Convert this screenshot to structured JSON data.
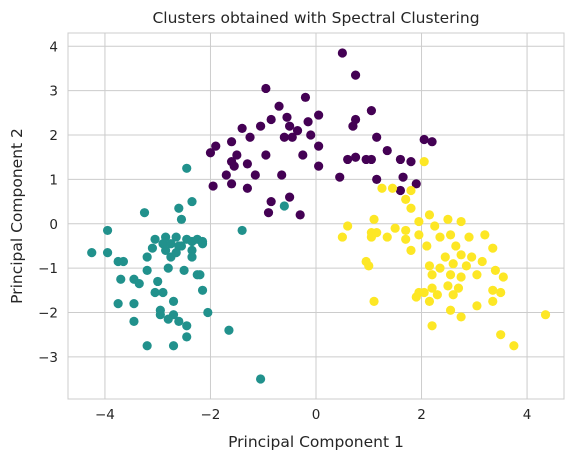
{
  "chart_data": {
    "type": "scatter",
    "title": "Clusters obtained with Spectral Clustering",
    "xlabel": "Principal Component 1",
    "ylabel": "Principal Component 2",
    "xlim": [
      -4.7,
      4.7
    ],
    "ylim": [
      -3.95,
      4.3
    ],
    "xticks": [
      -4,
      -2,
      0,
      2,
      4
    ],
    "yticks": [
      -3,
      -2,
      -1,
      0,
      1,
      2,
      3,
      4
    ],
    "xtick_labels": [
      "−4",
      "−2",
      "0",
      "2",
      "4"
    ],
    "ytick_labels": [
      "−3",
      "−2",
      "−1",
      "0",
      "1",
      "2",
      "3",
      "4"
    ],
    "grid": true,
    "legend": "none",
    "colormap": "viridis",
    "series": [
      {
        "color": "#440154",
        "points": [
          [
            0.5,
            3.85
          ],
          [
            0.75,
            3.35
          ],
          [
            -0.95,
            3.05
          ],
          [
            -0.2,
            2.85
          ],
          [
            -0.7,
            2.65
          ],
          [
            0.05,
            2.45
          ],
          [
            0.75,
            2.35
          ],
          [
            -0.55,
            2.4
          ],
          [
            -0.85,
            2.35
          ],
          [
            -0.15,
            2.3
          ],
          [
            1.05,
            2.55
          ],
          [
            -0.5,
            2.2
          ],
          [
            -1.05,
            2.2
          ],
          [
            -1.4,
            2.15
          ],
          [
            0.7,
            2.2
          ],
          [
            -0.35,
            2.1
          ],
          [
            -0.1,
            2.0
          ],
          [
            -0.6,
            1.95
          ],
          [
            -0.45,
            1.95
          ],
          [
            -1.25,
            1.95
          ],
          [
            0.05,
            1.75
          ],
          [
            -1.6,
            1.85
          ],
          [
            -1.9,
            1.75
          ],
          [
            -2.0,
            1.6
          ],
          [
            1.15,
            1.95
          ],
          [
            1.35,
            1.65
          ],
          [
            2.05,
            1.9
          ],
          [
            2.2,
            1.85
          ],
          [
            -0.95,
            1.55
          ],
          [
            -1.5,
            1.55
          ],
          [
            -0.25,
            1.55
          ],
          [
            0.75,
            1.5
          ],
          [
            0.95,
            1.45
          ],
          [
            1.05,
            1.45
          ],
          [
            1.6,
            1.45
          ],
          [
            1.8,
            1.4
          ],
          [
            0.6,
            1.45
          ],
          [
            -1.6,
            1.4
          ],
          [
            -1.55,
            1.3
          ],
          [
            -1.3,
            1.35
          ],
          [
            0.05,
            1.3
          ],
          [
            -1.7,
            1.1
          ],
          [
            -1.15,
            1.1
          ],
          [
            -0.65,
            1.1
          ],
          [
            0.45,
            1.05
          ],
          [
            1.15,
            1.0
          ],
          [
            1.65,
            1.05
          ],
          [
            -1.95,
            0.85
          ],
          [
            -1.6,
            0.9
          ],
          [
            -1.3,
            0.8
          ],
          [
            -0.5,
            0.6
          ],
          [
            -0.85,
            0.5
          ],
          [
            1.6,
            0.75
          ],
          [
            1.9,
            0.9
          ],
          [
            -0.9,
            0.25
          ],
          [
            -0.3,
            0.2
          ]
        ]
      },
      {
        "color": "#21918c",
        "points": [
          [
            -2.45,
            1.25
          ],
          [
            -2.6,
            0.35
          ],
          [
            -2.35,
            0.5
          ],
          [
            -2.55,
            0.1
          ],
          [
            -3.25,
            0.25
          ],
          [
            -1.4,
            -0.15
          ],
          [
            -3.95,
            -0.15
          ],
          [
            -4.25,
            -0.65
          ],
          [
            -3.95,
            -0.65
          ],
          [
            -3.65,
            -0.85
          ],
          [
            -3.75,
            -0.85
          ],
          [
            -3.05,
            -0.35
          ],
          [
            -2.9,
            -0.45
          ],
          [
            -2.85,
            -0.3
          ],
          [
            -2.75,
            -0.45
          ],
          [
            -2.65,
            -0.3
          ],
          [
            -2.55,
            -0.5
          ],
          [
            -2.45,
            -0.35
          ],
          [
            -2.35,
            -0.4
          ],
          [
            -2.25,
            -0.35
          ],
          [
            -2.15,
            -0.45
          ],
          [
            -3.1,
            -0.55
          ],
          [
            -2.85,
            -0.6
          ],
          [
            -2.6,
            -0.5
          ],
          [
            -2.35,
            -0.6
          ],
          [
            -2.15,
            -0.4
          ],
          [
            -3.2,
            -0.75
          ],
          [
            -2.75,
            -0.75
          ],
          [
            -2.65,
            -0.65
          ],
          [
            -2.35,
            -0.75
          ],
          [
            -2.8,
            -1.0
          ],
          [
            -3.2,
            -1.05
          ],
          [
            -2.5,
            -1.05
          ],
          [
            -3.7,
            -1.25
          ],
          [
            -3.45,
            -1.25
          ],
          [
            -2.2,
            -1.15
          ],
          [
            -2.25,
            -1.15
          ],
          [
            -3.35,
            -1.35
          ],
          [
            -3.0,
            -1.3
          ],
          [
            -3.05,
            -1.55
          ],
          [
            -2.9,
            -1.55
          ],
          [
            -2.15,
            -1.5
          ],
          [
            -3.75,
            -1.8
          ],
          [
            -3.45,
            -1.8
          ],
          [
            -2.7,
            -1.75
          ],
          [
            -2.95,
            -1.95
          ],
          [
            -2.7,
            -2.05
          ],
          [
            -2.05,
            -2.0
          ],
          [
            -2.95,
            -2.05
          ],
          [
            -2.8,
            -2.15
          ],
          [
            -2.6,
            -2.2
          ],
          [
            -3.45,
            -2.2
          ],
          [
            -2.45,
            -2.3
          ],
          [
            -1.65,
            -2.4
          ],
          [
            -2.45,
            -2.55
          ],
          [
            -3.2,
            -2.75
          ],
          [
            -2.7,
            -2.75
          ],
          [
            -1.05,
            -3.5
          ],
          [
            -0.6,
            0.4
          ]
        ]
      },
      {
        "color": "#fde725",
        "points": [
          [
            2.05,
            1.4
          ],
          [
            1.25,
            0.8
          ],
          [
            1.45,
            0.8
          ],
          [
            1.8,
            0.75
          ],
          [
            1.7,
            0.55
          ],
          [
            1.8,
            0.35
          ],
          [
            1.1,
            0.1
          ],
          [
            0.6,
            -0.05
          ],
          [
            1.05,
            -0.2
          ],
          [
            0.5,
            -0.3
          ],
          [
            1.15,
            -0.2
          ],
          [
            1.05,
            -0.3
          ],
          [
            1.5,
            -0.1
          ],
          [
            1.35,
            -0.3
          ],
          [
            1.7,
            -0.15
          ],
          [
            1.7,
            -0.35
          ],
          [
            1.95,
            0.05
          ],
          [
            1.95,
            -0.25
          ],
          [
            2.15,
            0.2
          ],
          [
            2.25,
            -0.05
          ],
          [
            2.35,
            -0.3
          ],
          [
            2.5,
            0.1
          ],
          [
            2.75,
            0.05
          ],
          [
            2.55,
            -0.25
          ],
          [
            2.9,
            -0.3
          ],
          [
            2.1,
            -0.5
          ],
          [
            2.65,
            -0.5
          ],
          [
            3.2,
            -0.25
          ],
          [
            1.8,
            -0.6
          ],
          [
            2.45,
            -0.75
          ],
          [
            2.75,
            -0.7
          ],
          [
            2.95,
            -0.75
          ],
          [
            3.35,
            -0.55
          ],
          [
            2.15,
            -0.95
          ],
          [
            2.35,
            -1.0
          ],
          [
            2.6,
            -0.9
          ],
          [
            2.85,
            -0.95
          ],
          [
            3.15,
            -0.85
          ],
          [
            0.95,
            -0.85
          ],
          [
            1.0,
            -0.95
          ],
          [
            2.2,
            -1.15
          ],
          [
            2.55,
            -1.15
          ],
          [
            2.75,
            -1.2
          ],
          [
            3.05,
            -1.15
          ],
          [
            3.4,
            -1.05
          ],
          [
            3.55,
            -1.2
          ],
          [
            2.5,
            -1.4
          ],
          [
            2.7,
            -1.45
          ],
          [
            2.2,
            -1.45
          ],
          [
            3.35,
            -1.5
          ],
          [
            1.9,
            -1.65
          ],
          [
            1.95,
            -1.55
          ],
          [
            2.05,
            -1.55
          ],
          [
            2.3,
            -1.6
          ],
          [
            2.6,
            -1.6
          ],
          [
            2.15,
            -1.75
          ],
          [
            3.5,
            -1.55
          ],
          [
            3.35,
            -1.75
          ],
          [
            1.1,
            -1.75
          ],
          [
            2.55,
            -1.95
          ],
          [
            3.05,
            -1.85
          ],
          [
            2.75,
            -2.1
          ],
          [
            4.35,
            -2.05
          ],
          [
            2.2,
            -2.3
          ],
          [
            3.5,
            -2.5
          ],
          [
            3.75,
            -2.75
          ]
        ]
      }
    ]
  }
}
